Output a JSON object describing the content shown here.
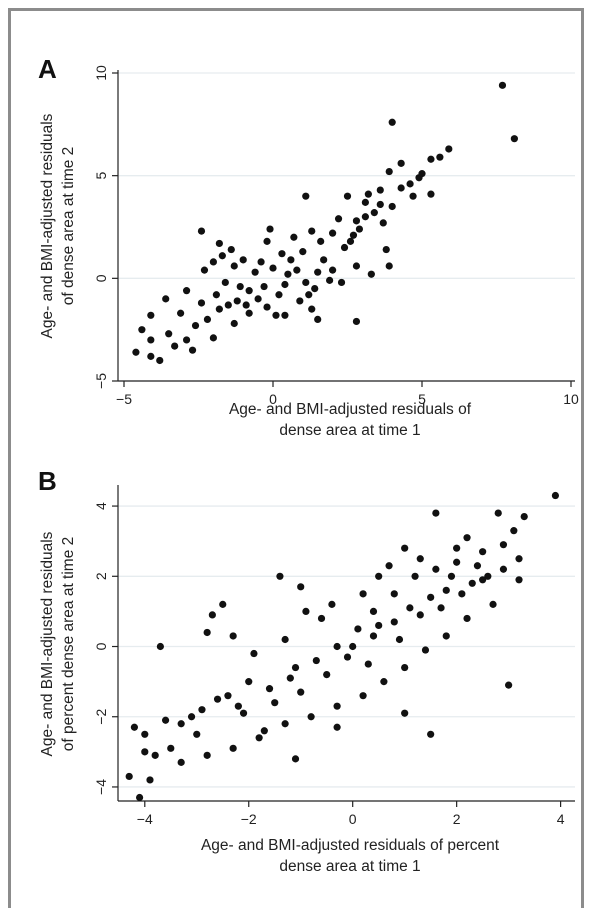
{
  "chart_data": [
    {
      "type": "scatter",
      "panel_label": "A",
      "xlabel": [
        "Age- and BMI-adjusted residuals of",
        "dense area at time 1"
      ],
      "ylabel": [
        "Age- and BMI-adjusted residuals",
        "of dense area at time 2"
      ],
      "xlim": [
        -5,
        10
      ],
      "ylim": [
        -5,
        10
      ],
      "xticks": [
        "−5",
        "0",
        "5",
        "10"
      ],
      "yticks": [
        "−5",
        "0",
        "5",
        "10"
      ],
      "grid": "horizontal",
      "marker_color": "#111111",
      "points": [
        [
          7.7,
          9.4
        ],
        [
          8.1,
          6.8
        ],
        [
          4.0,
          7.6
        ],
        [
          5.9,
          6.3
        ],
        [
          5.3,
          5.8
        ],
        [
          4.3,
          5.6
        ],
        [
          5.6,
          5.9
        ],
        [
          3.9,
          5.2
        ],
        [
          4.9,
          4.9
        ],
        [
          4.3,
          4.4
        ],
        [
          3.6,
          4.3
        ],
        [
          3.2,
          4.1
        ],
        [
          2.5,
          4.0
        ],
        [
          1.1,
          4.0
        ],
        [
          4.0,
          3.5
        ],
        [
          5.3,
          4.1
        ],
        [
          3.1,
          3.7
        ],
        [
          -2.4,
          2.3
        ],
        [
          -1.8,
          1.7
        ],
        [
          -1.7,
          1.1
        ],
        [
          -1.4,
          1.4
        ],
        [
          -2.3,
          0.4
        ],
        [
          -1.3,
          0.6
        ],
        [
          -2.0,
          0.8
        ],
        [
          3.1,
          3.0
        ],
        [
          2.8,
          2.8
        ],
        [
          3.7,
          2.7
        ],
        [
          2.7,
          2.1
        ],
        [
          3.8,
          1.4
        ],
        [
          3.9,
          0.6
        ],
        [
          2.8,
          0.6
        ],
        [
          3.3,
          0.2
        ],
        [
          2.0,
          0.4
        ],
        [
          1.9,
          -0.1
        ],
        [
          2.3,
          -0.2
        ],
        [
          1.4,
          -0.5
        ],
        [
          1.2,
          -0.8
        ],
        [
          0.9,
          -1.1
        ],
        [
          0.4,
          -1.8
        ],
        [
          1.3,
          -1.5
        ],
        [
          2.8,
          -2.1
        ],
        [
          1.5,
          -2.0
        ],
        [
          0.1,
          -1.8
        ],
        [
          -0.8,
          -1.7
        ],
        [
          -1.3,
          -2.2
        ],
        [
          -2.0,
          -2.9
        ],
        [
          -2.9,
          -3.0
        ],
        [
          -3.5,
          -2.7
        ],
        [
          -4.1,
          -3.0
        ],
        [
          -4.6,
          -3.6
        ],
        [
          -4.1,
          -3.8
        ],
        [
          -4.4,
          -2.5
        ],
        [
          -3.8,
          -4.0
        ],
        [
          -3.3,
          -3.3
        ],
        [
          -2.7,
          -3.5
        ],
        [
          -3.1,
          -1.7
        ],
        [
          -2.4,
          -1.2
        ],
        [
          -3.6,
          -1.0
        ],
        [
          -4.1,
          -1.8
        ],
        [
          -2.9,
          -0.6
        ],
        [
          0.3,
          1.2
        ],
        [
          0.5,
          0.2
        ],
        [
          -0.3,
          -0.4
        ],
        [
          0.0,
          0.5
        ],
        [
          -0.8,
          -0.6
        ],
        [
          1.0,
          1.3
        ],
        [
          0.6,
          0.9
        ],
        [
          -0.5,
          -1.0
        ],
        [
          -1.1,
          -0.4
        ],
        [
          0.8,
          0.4
        ],
        [
          1.6,
          1.8
        ],
        [
          2.0,
          2.2
        ],
        [
          1.3,
          2.3
        ],
        [
          -0.2,
          1.8
        ],
        [
          -1.0,
          0.9
        ],
        [
          0.2,
          -0.8
        ],
        [
          -1.5,
          -1.3
        ],
        [
          -0.6,
          0.3
        ],
        [
          2.4,
          1.5
        ],
        [
          2.2,
          2.9
        ],
        [
          1.7,
          0.9
        ],
        [
          1.1,
          -0.2
        ],
        [
          -0.1,
          2.4
        ],
        [
          0.7,
          2.0
        ],
        [
          -0.4,
          0.8
        ],
        [
          -1.2,
          -1.1
        ],
        [
          -1.8,
          -1.5
        ],
        [
          -2.2,
          -2.0
        ],
        [
          -2.6,
          -2.3
        ],
        [
          -1.6,
          -0.2
        ],
        [
          -1.9,
          -0.8
        ],
        [
          -0.9,
          -1.3
        ],
        [
          -0.2,
          -1.4
        ],
        [
          0.4,
          -0.3
        ],
        [
          1.5,
          0.3
        ],
        [
          2.6,
          1.8
        ],
        [
          2.9,
          2.4
        ],
        [
          3.4,
          3.2
        ],
        [
          4.6,
          4.6
        ],
        [
          5.0,
          5.1
        ],
        [
          4.7,
          4.0
        ],
        [
          3.6,
          3.6
        ]
      ]
    },
    {
      "type": "scatter",
      "panel_label": "B",
      "xlabel": [
        "Age- and BMI-adjusted residuals of percent",
        "dense area at time 1"
      ],
      "ylabel": [
        "Age- and BMI-adjusted residuals",
        "of percent dense area at time 2"
      ],
      "xlim": [
        -4.4,
        4.2
      ],
      "ylim": [
        -4.4,
        4.6
      ],
      "xticks": [
        "−4",
        "−2",
        "0",
        "2",
        "4"
      ],
      "yticks": [
        "−4",
        "−2",
        "0",
        "2",
        "4"
      ],
      "grid": "horizontal",
      "marker_color": "#111111",
      "points": [
        [
          3.9,
          4.3
        ],
        [
          1.6,
          3.8
        ],
        [
          -1.4,
          2.0
        ],
        [
          -2.5,
          1.2
        ],
        [
          -2.7,
          0.9
        ],
        [
          -2.8,
          0.4
        ],
        [
          -2.3,
          0.3
        ],
        [
          -3.7,
          0.0
        ],
        [
          -1.0,
          1.7
        ],
        [
          -0.9,
          1.0
        ],
        [
          -4.2,
          -2.3
        ],
        [
          -4.0,
          -2.5
        ],
        [
          -3.6,
          -2.1
        ],
        [
          -4.3,
          -3.7
        ],
        [
          -3.9,
          -3.8
        ],
        [
          -4.1,
          -4.3
        ],
        [
          -4.0,
          -3.0
        ],
        [
          -3.5,
          -2.9
        ],
        [
          -3.0,
          -2.5
        ],
        [
          -3.1,
          -2.0
        ],
        [
          -2.6,
          -1.5
        ],
        [
          -2.2,
          -1.7
        ],
        [
          -1.7,
          -2.4
        ],
        [
          -1.1,
          -3.2
        ],
        [
          -0.3,
          -2.3
        ],
        [
          1.0,
          -1.9
        ],
        [
          1.5,
          -2.5
        ],
        [
          3.0,
          -1.1
        ],
        [
          2.8,
          3.8
        ],
        [
          3.1,
          3.3
        ],
        [
          3.3,
          3.7
        ],
        [
          3.2,
          2.5
        ],
        [
          2.2,
          3.1
        ],
        [
          2.5,
          2.7
        ],
        [
          1.6,
          2.2
        ],
        [
          2.0,
          2.4
        ],
        [
          1.2,
          2.0
        ],
        [
          0.8,
          1.5
        ],
        [
          0.4,
          1.0
        ],
        [
          0.1,
          0.5
        ],
        [
          -0.3,
          0.0
        ],
        [
          -0.7,
          -0.4
        ],
        [
          -1.2,
          -0.9
        ],
        [
          -1.6,
          -1.2
        ],
        [
          -2.0,
          -1.0
        ],
        [
          -2.4,
          -1.4
        ],
        [
          -1.9,
          -0.2
        ],
        [
          -1.3,
          0.2
        ],
        [
          -0.6,
          0.8
        ],
        [
          0.2,
          1.5
        ],
        [
          0.7,
          2.3
        ],
        [
          1.3,
          2.5
        ],
        [
          1.8,
          1.6
        ],
        [
          2.3,
          1.8
        ],
        [
          2.6,
          2.0
        ],
        [
          2.9,
          2.2
        ],
        [
          3.2,
          1.9
        ],
        [
          2.7,
          1.2
        ],
        [
          2.2,
          0.8
        ],
        [
          1.8,
          0.3
        ],
        [
          1.4,
          -0.1
        ],
        [
          1.0,
          -0.6
        ],
        [
          0.6,
          -1.0
        ],
        [
          0.2,
          -1.4
        ],
        [
          -0.3,
          -1.7
        ],
        [
          -0.8,
          -2.0
        ],
        [
          -1.3,
          -2.2
        ],
        [
          -1.8,
          -2.6
        ],
        [
          -2.3,
          -2.9
        ],
        [
          -2.8,
          -3.1
        ],
        [
          -3.3,
          -3.3
        ],
        [
          -3.8,
          -3.1
        ],
        [
          0.9,
          0.2
        ],
        [
          0.5,
          0.6
        ],
        [
          1.1,
          1.1
        ],
        [
          1.5,
          1.4
        ],
        [
          1.9,
          2.0
        ],
        [
          2.4,
          2.3
        ],
        [
          -0.1,
          -0.3
        ],
        [
          -0.5,
          -0.8
        ],
        [
          -1.0,
          -1.3
        ],
        [
          -1.5,
          -1.6
        ],
        [
          -2.1,
          -1.9
        ],
        [
          0.3,
          -0.5
        ],
        [
          0.8,
          0.7
        ],
        [
          1.3,
          0.9
        ],
        [
          1.7,
          1.1
        ],
        [
          2.1,
          1.5
        ],
        [
          2.5,
          1.9
        ],
        [
          2.0,
          2.8
        ],
        [
          1.0,
          2.8
        ],
        [
          0.5,
          2.0
        ],
        [
          -0.4,
          1.2
        ],
        [
          -2.9,
          -1.8
        ],
        [
          -3.3,
          -2.2
        ],
        [
          -1.1,
          -0.6
        ],
        [
          0.0,
          0.0
        ],
        [
          0.4,
          0.3
        ],
        [
          2.9,
          2.9
        ]
      ]
    }
  ]
}
